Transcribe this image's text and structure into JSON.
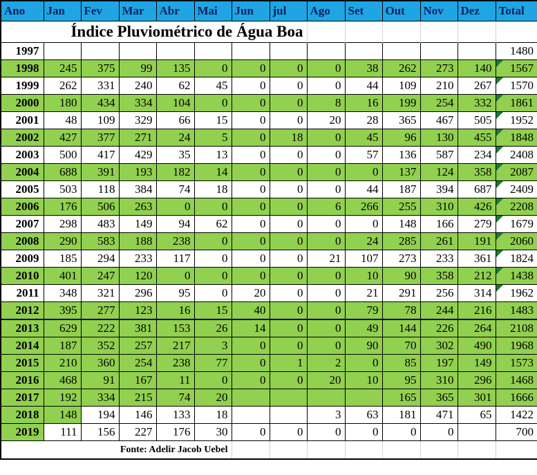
{
  "title": "Índice Pluviométrico de Água Boa",
  "footer_note": "Fonte: Adelir Jacob Uebel",
  "colors": {
    "header_bg": "#1fa5e3",
    "header_text": "#0b2161",
    "green": "#92d050",
    "marker": "#1f7a33",
    "border": "#000000",
    "gridline": "#d4d4d4"
  },
  "icons": {
    "error_indicator": "cell-error-triangle"
  },
  "columns": [
    "Ano",
    "Jan",
    "Fev",
    "Mar",
    "Abr",
    "Mai",
    "Jun",
    "jul",
    "Ago",
    "Set",
    "Out",
    "Nov",
    "Dez",
    "Total"
  ],
  "rows": [
    {
      "year": "1997",
      "values": [
        "",
        "",
        "",
        "",
        "",
        "",
        "",
        "",
        "",
        "",
        "",
        "",
        "1480"
      ],
      "green_cols": 0,
      "marker": false,
      "thick_bottom": false
    },
    {
      "year": "1998",
      "values": [
        "245",
        "375",
        "99",
        "135",
        "0",
        "0",
        "0",
        "0",
        "38",
        "262",
        "273",
        "140",
        "1567"
      ],
      "green_cols": 14,
      "marker": true,
      "thick_bottom": false
    },
    {
      "year": "1999",
      "values": [
        "262",
        "331",
        "240",
        "62",
        "45",
        "0",
        "0",
        "0",
        "44",
        "109",
        "210",
        "267",
        "1570"
      ],
      "green_cols": 0,
      "marker": true,
      "thick_bottom": false
    },
    {
      "year": "2000",
      "values": [
        "180",
        "434",
        "334",
        "104",
        "0",
        "0",
        "0",
        "8",
        "16",
        "199",
        "254",
        "332",
        "1861"
      ],
      "green_cols": 14,
      "marker": true,
      "thick_bottom": false
    },
    {
      "year": "2001",
      "values": [
        "48",
        "109",
        "329",
        "66",
        "15",
        "0",
        "0",
        "20",
        "28",
        "365",
        "467",
        "505",
        "1952"
      ],
      "green_cols": 0,
      "marker": true,
      "thick_bottom": false
    },
    {
      "year": "2002",
      "values": [
        "427",
        "377",
        "271",
        "24",
        "5",
        "0",
        "18",
        "0",
        "45",
        "96",
        "130",
        "455",
        "1848"
      ],
      "green_cols": 14,
      "marker": true,
      "thick_bottom": false
    },
    {
      "year": "2003",
      "values": [
        "500",
        "417",
        "429",
        "35",
        "13",
        "0",
        "0",
        "0",
        "57",
        "136",
        "587",
        "234",
        "2408"
      ],
      "green_cols": 0,
      "marker": true,
      "thick_bottom": false
    },
    {
      "year": "2004",
      "values": [
        "688",
        "391",
        "193",
        "182",
        "14",
        "0",
        "0",
        "0",
        "0",
        "137",
        "124",
        "358",
        "2087"
      ],
      "green_cols": 14,
      "marker": true,
      "thick_bottom": false
    },
    {
      "year": "2005",
      "values": [
        "503",
        "118",
        "384",
        "74",
        "18",
        "0",
        "0",
        "0",
        "44",
        "187",
        "394",
        "687",
        "2409"
      ],
      "green_cols": 0,
      "marker": true,
      "thick_bottom": false
    },
    {
      "year": "2006",
      "values": [
        "176",
        "506",
        "263",
        "0",
        "0",
        "0",
        "0",
        "6",
        "266",
        "255",
        "310",
        "426",
        "2208"
      ],
      "green_cols": 14,
      "marker": true,
      "thick_bottom": false
    },
    {
      "year": "2007",
      "values": [
        "298",
        "483",
        "149",
        "94",
        "62",
        "0",
        "0",
        "0",
        "0",
        "148",
        "166",
        "279",
        "1679"
      ],
      "green_cols": 0,
      "marker": true,
      "thick_bottom": false
    },
    {
      "year": "2008",
      "values": [
        "290",
        "583",
        "188",
        "238",
        "0",
        "0",
        "0",
        "0",
        "24",
        "285",
        "261",
        "191",
        "2060"
      ],
      "green_cols": 14,
      "marker": true,
      "thick_bottom": false
    },
    {
      "year": "2009",
      "values": [
        "185",
        "294",
        "233",
        "117",
        "0",
        "0",
        "0",
        "21",
        "107",
        "273",
        "233",
        "361",
        "1824"
      ],
      "green_cols": 0,
      "marker": true,
      "thick_bottom": false
    },
    {
      "year": "2010",
      "values": [
        "401",
        "247",
        "120",
        "0",
        "0",
        "0",
        "0",
        "0",
        "10",
        "90",
        "358",
        "212",
        "1438"
      ],
      "green_cols": 14,
      "marker": true,
      "thick_bottom": false
    },
    {
      "year": "2011",
      "values": [
        "348",
        "321",
        "296",
        "95",
        "0",
        "20",
        "0",
        "0",
        "21",
        "291",
        "256",
        "314",
        "1962"
      ],
      "green_cols": 0,
      "marker": true,
      "thick_bottom": false
    },
    {
      "year": "2012",
      "values": [
        "395",
        "277",
        "123",
        "16",
        "15",
        "40",
        "0",
        "0",
        "79",
        "78",
        "244",
        "216",
        "1483"
      ],
      "green_cols": 14,
      "marker": false,
      "thick_bottom": true
    },
    {
      "year": "2013",
      "values": [
        "629",
        "222",
        "381",
        "153",
        "26",
        "14",
        "0",
        "0",
        "49",
        "144",
        "226",
        "264",
        "2108"
      ],
      "green_cols": 14,
      "marker": false,
      "thick_bottom": false
    },
    {
      "year": "2014",
      "values": [
        "187",
        "352",
        "257",
        "217",
        "3",
        "0",
        "0",
        "0",
        "90",
        "70",
        "302",
        "490",
        "1968"
      ],
      "green_cols": 14,
      "marker": false,
      "thick_bottom": false
    },
    {
      "year": "2015",
      "values": [
        "210",
        "360",
        "254",
        "238",
        "77",
        "0",
        "1",
        "2",
        "0",
        "85",
        "197",
        "149",
        "1573"
      ],
      "green_cols": 14,
      "marker": false,
      "thick_bottom": false
    },
    {
      "year": "2016",
      "values": [
        "468",
        "91",
        "167",
        "11",
        "0",
        "0",
        "0",
        "20",
        "10",
        "95",
        "310",
        "296",
        "1468"
      ],
      "green_cols": 14,
      "marker": false,
      "thick_bottom": false
    },
    {
      "year": "2017",
      "values": [
        "192",
        "334",
        "215",
        "74",
        "20",
        "",
        "",
        "",
        "",
        "165",
        "365",
        "301",
        "1666"
      ],
      "green_cols": 14,
      "marker": false,
      "thick_bottom": false
    },
    {
      "year": "2018",
      "values": [
        "148",
        "194",
        "146",
        "133",
        "18",
        "",
        "",
        "3",
        "63",
        "181",
        "471",
        "65",
        "1422"
      ],
      "green_cols": 2,
      "marker": false,
      "thick_bottom": false
    },
    {
      "year": "2019",
      "values": [
        "111",
        "156",
        "227",
        "176",
        "30",
        "0",
        "0",
        "0",
        "0",
        "0",
        "0",
        "",
        "700"
      ],
      "green_cols": 1,
      "marker": false,
      "thick_bottom": false
    }
  ]
}
